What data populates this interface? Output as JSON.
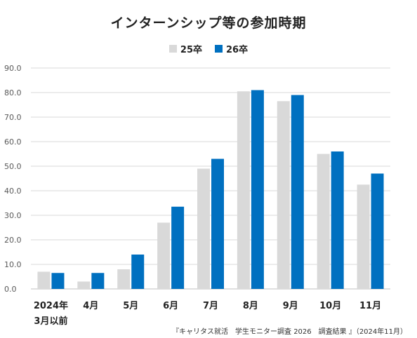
{
  "colors": {
    "s25": "#d9d9d9",
    "s26": "#0070c0",
    "grid": "#d9d9d9",
    "axis_text": "#595959"
  },
  "source_note": "『キャリタス就活　学生モニター調査 2026　調査結果 』（2024年11月）",
  "chart_data": {
    "type": "bar",
    "title": "インターンシップ等の参加時期",
    "xlabel": "",
    "ylabel": "",
    "ylim": [
      0,
      90
    ],
    "yticks": [
      "0.0",
      "10.0",
      "20.0",
      "30.0",
      "40.0",
      "50.0",
      "60.0",
      "70.0",
      "80.0",
      "90.0"
    ],
    "grid": true,
    "legend_position": "top",
    "categories": [
      [
        "2024年",
        "3月以前"
      ],
      [
        "4月"
      ],
      [
        "5月"
      ],
      [
        "6月"
      ],
      [
        "7月"
      ],
      [
        "8月"
      ],
      [
        "9月"
      ],
      [
        "10月"
      ],
      [
        "11月"
      ]
    ],
    "series": [
      {
        "name": "25卒",
        "color": "#d9d9d9",
        "values": [
          7.0,
          3.0,
          8.0,
          27.0,
          49.0,
          80.5,
          76.5,
          55.0,
          42.5
        ]
      },
      {
        "name": "26卒",
        "color": "#0070c0",
        "values": [
          6.5,
          6.5,
          14.0,
          33.5,
          53.0,
          81.0,
          79.0,
          56.0,
          47.0
        ]
      }
    ]
  }
}
